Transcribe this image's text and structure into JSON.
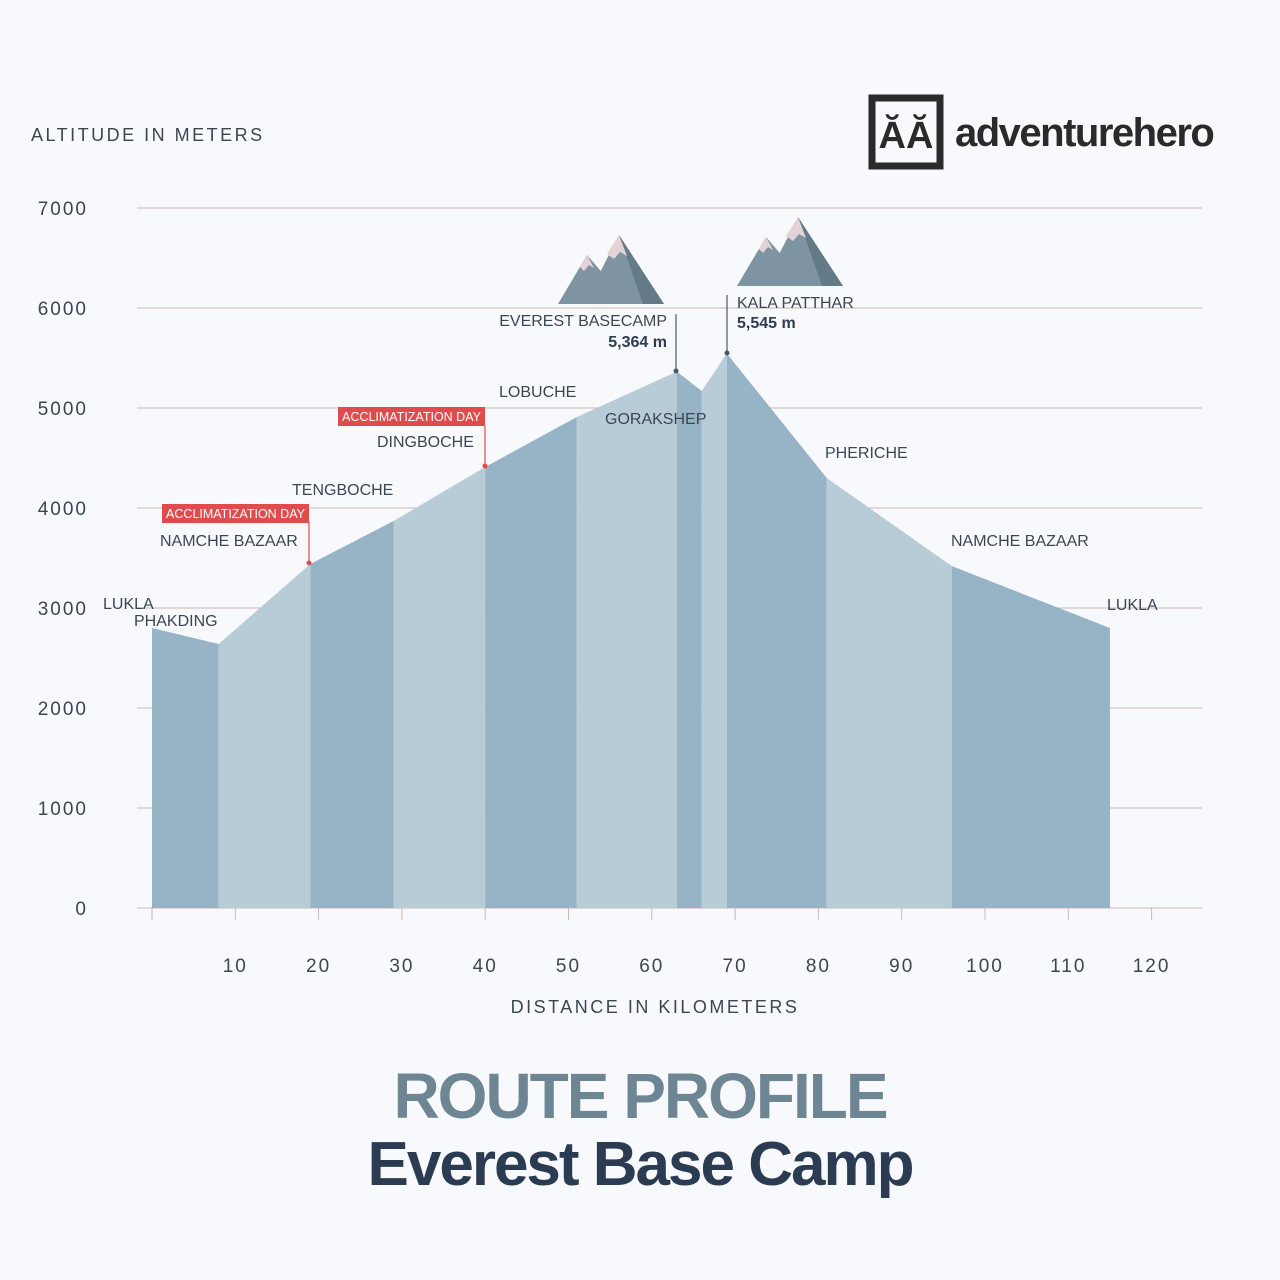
{
  "brand": {
    "name": "adventurehero",
    "mark": "ĂĂ"
  },
  "colors": {
    "segment_dark": "#97b4c7",
    "segment_light": "#b8ccd8",
    "grid": "#c8b9b0",
    "accent_red": "#e04b4d",
    "text": "#3c4653",
    "mountain_dark": "#637a88",
    "mountain_light": "#7e94a3",
    "mountain_snow": "#e3d3d6"
  },
  "page_title": {
    "line1": "ROUTE PROFILE",
    "line2": "Everest Base Camp"
  },
  "chart_data": {
    "type": "area",
    "ylabel": "ALTITUDE IN METERS",
    "xlabel": "DISTANCE IN KILOMETERS",
    "ylim": [
      0,
      7000
    ],
    "xlim": [
      0,
      125
    ],
    "y_ticks": [
      0,
      1000,
      2000,
      3000,
      4000,
      5000,
      6000,
      7000
    ],
    "x_ticks": [
      10,
      20,
      30,
      40,
      50,
      60,
      70,
      80,
      90,
      100,
      110,
      120
    ],
    "grid": true,
    "profile": [
      {
        "km": 0,
        "alt": 2800
      },
      {
        "km": 8,
        "alt": 2640
      },
      {
        "km": 19,
        "alt": 3440
      },
      {
        "km": 29,
        "alt": 3870
      },
      {
        "km": 40,
        "alt": 4410
      },
      {
        "km": 51,
        "alt": 4910
      },
      {
        "km": 63,
        "alt": 5364
      },
      {
        "km": 66,
        "alt": 5170
      },
      {
        "km": 69,
        "alt": 5545
      },
      {
        "km": 81,
        "alt": 4300
      },
      {
        "km": 96,
        "alt": 3420
      },
      {
        "km": 115,
        "alt": 2800
      }
    ],
    "stops": [
      {
        "name": "LUKLA",
        "km": 0,
        "alt": 2800
      },
      {
        "name": "PHAKDING",
        "km": 8,
        "alt": 2640
      },
      {
        "name": "NAMCHE BAZAAR",
        "km": 19,
        "alt": 3440,
        "badge": "ACCLIMATIZATION DAY"
      },
      {
        "name": "TENGBOCHE",
        "km": 29,
        "alt": 3870
      },
      {
        "name": "DINGBOCHE",
        "km": 40,
        "alt": 4410,
        "badge": "ACCLIMATIZATION DAY"
      },
      {
        "name": "LOBUCHE",
        "km": 51,
        "alt": 4910
      },
      {
        "name": "EVEREST BASECAMP",
        "km": 63,
        "alt": 5364,
        "value_label": "5,364 m"
      },
      {
        "name": "GORAKSHEP",
        "km": 66,
        "alt": 5170
      },
      {
        "name": "KALA PATTHAR",
        "km": 69,
        "alt": 5545,
        "value_label": "5,545 m"
      },
      {
        "name": "PHERICHE",
        "km": 81,
        "alt": 4300
      },
      {
        "name": "NAMCHE BAZAAR",
        "km": 96,
        "alt": 3420
      },
      {
        "name": "LUKLA",
        "km": 115,
        "alt": 2800
      }
    ]
  }
}
